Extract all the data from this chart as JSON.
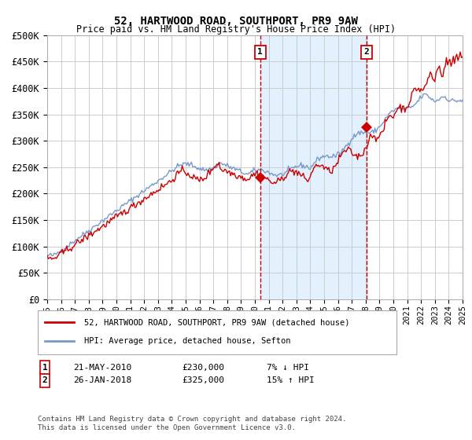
{
  "title": "52, HARTWOOD ROAD, SOUTHPORT, PR9 9AW",
  "subtitle": "Price paid vs. HM Land Registry's House Price Index (HPI)",
  "legend_line1": "52, HARTWOOD ROAD, SOUTHPORT, PR9 9AW (detached house)",
  "legend_line2": "HPI: Average price, detached house, Sefton",
  "annotation1_label": "1",
  "annotation1_date": "21-MAY-2010",
  "annotation1_price": "£230,000",
  "annotation1_hpi": "7% ↓ HPI",
  "annotation1_year": 2010.39,
  "annotation1_value": 230000,
  "annotation2_label": "2",
  "annotation2_date": "26-JAN-2018",
  "annotation2_price": "£325,000",
  "annotation2_hpi": "15% ↑ HPI",
  "annotation2_year": 2018.07,
  "annotation2_value": 325000,
  "red_color": "#cc0000",
  "blue_color": "#7799cc",
  "blue_fill": "#ddeeff",
  "background_color": "#ffffff",
  "grid_color": "#cccccc",
  "ylim": [
    0,
    500000
  ],
  "xlim_start": 1995,
  "xlim_end": 2025,
  "ylabel_ticks": [
    0,
    50000,
    100000,
    150000,
    200000,
    250000,
    300000,
    350000,
    400000,
    450000,
    500000
  ],
  "xtick_years": [
    1995,
    1996,
    1997,
    1998,
    1999,
    2000,
    2001,
    2002,
    2003,
    2004,
    2005,
    2006,
    2007,
    2008,
    2009,
    2010,
    2011,
    2012,
    2013,
    2014,
    2015,
    2016,
    2017,
    2018,
    2019,
    2020,
    2021,
    2022,
    2023,
    2024,
    2025
  ],
  "footnote": "Contains HM Land Registry data © Crown copyright and database right 2024.\nThis data is licensed under the Open Government Licence v3.0."
}
